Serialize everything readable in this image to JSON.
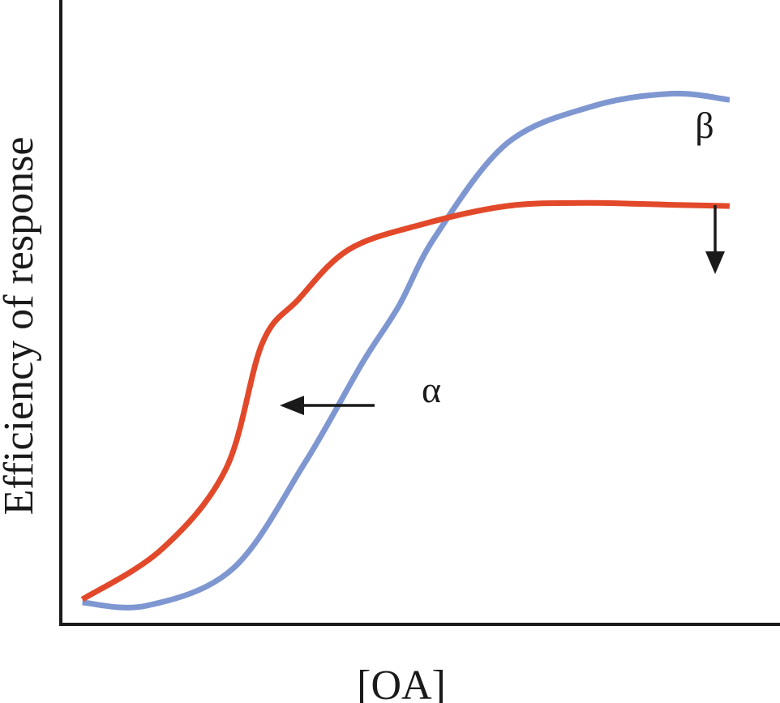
{
  "chart_data": {
    "type": "line",
    "xlabel": "[OA]",
    "ylabel": "Efficiency of response",
    "xlim": [
      0,
      10
    ],
    "ylim": [
      0,
      10
    ],
    "grid": false,
    "series": [
      {
        "color": "#7f97d1",
        "x": [
          0.3,
          1.2,
          2.4,
          3.4,
          4.2,
          4.7,
          5.2,
          6.2,
          7.4,
          8.5,
          9.3
        ],
        "y": [
          0.35,
          0.3,
          0.9,
          2.6,
          4.2,
          5.1,
          6.2,
          7.7,
          8.3,
          8.5,
          8.4
        ]
      },
      {
        "color": "#e2492a",
        "x": [
          0.3,
          1.4,
          2.3,
          2.8,
          3.3,
          4.0,
          5.0,
          6.2,
          7.3,
          8.5,
          9.3
        ],
        "y": [
          0.4,
          1.2,
          2.5,
          4.5,
          5.2,
          6.0,
          6.4,
          6.7,
          6.75,
          6.72,
          6.7
        ]
      }
    ],
    "annotations": [
      {
        "text": "α",
        "arrow": "left"
      },
      {
        "text": "β",
        "arrow": "down"
      }
    ]
  }
}
